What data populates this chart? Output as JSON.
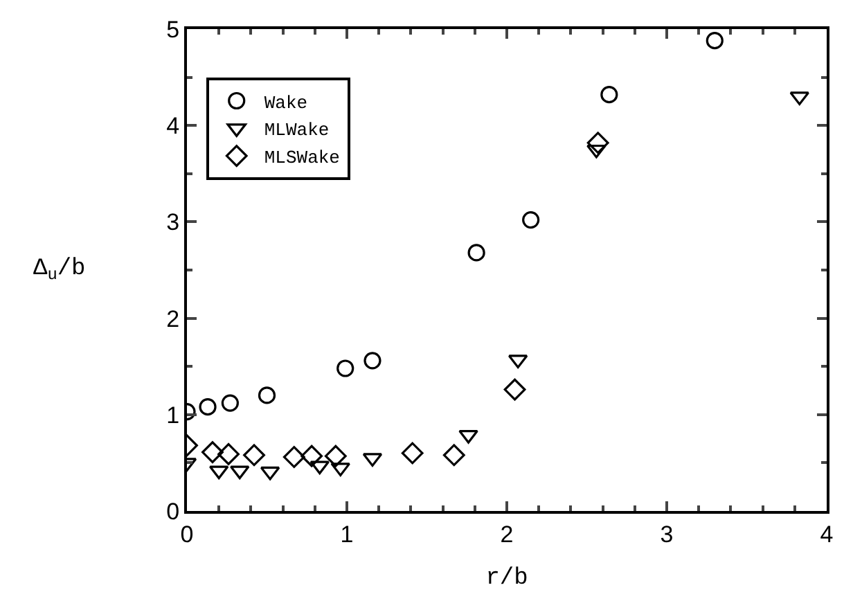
{
  "chart_data": {
    "type": "scatter",
    "xlabel": "r/b",
    "ylabel": "Δ$_{u}$/b",
    "xlim": [
      0,
      4
    ],
    "ylim": [
      0,
      5
    ],
    "xticks": [
      0,
      1,
      2,
      3,
      4
    ],
    "yticks": [
      0,
      1,
      2,
      3,
      4,
      5
    ],
    "legend": "top left",
    "series": [
      {
        "name": "Wake",
        "color": "#000000",
        "marker": "circle",
        "x": [
          0,
          0.13,
          0.27,
          0.5,
          0.99,
          1.16,
          1.81,
          2.15,
          2.64,
          3.3
        ],
        "values": [
          1.03,
          1.08,
          1.12,
          1.2,
          1.48,
          1.56,
          2.68,
          3.02,
          4.32,
          4.88
        ]
      },
      {
        "name": "MLWake",
        "color": "#000000",
        "marker": "triangle",
        "x": [
          0,
          0.2,
          0.33,
          0.52,
          0.83,
          0.96,
          1.16,
          1.76,
          2.07,
          2.56,
          3.83
        ],
        "values": [
          0.5,
          0.42,
          0.42,
          0.41,
          0.47,
          0.45,
          0.55,
          0.79,
          1.57,
          3.75,
          4.3
        ]
      },
      {
        "name": "MLSWake",
        "color": "#000000",
        "marker": "diamond",
        "x": [
          0,
          0.16,
          0.26,
          0.42,
          0.67,
          0.78,
          0.93,
          1.41,
          1.67,
          2.05,
          2.57
        ],
        "values": [
          0.68,
          0.61,
          0.59,
          0.58,
          0.56,
          0.57,
          0.57,
          0.6,
          0.58,
          1.26,
          3.82
        ]
      }
    ]
  }
}
